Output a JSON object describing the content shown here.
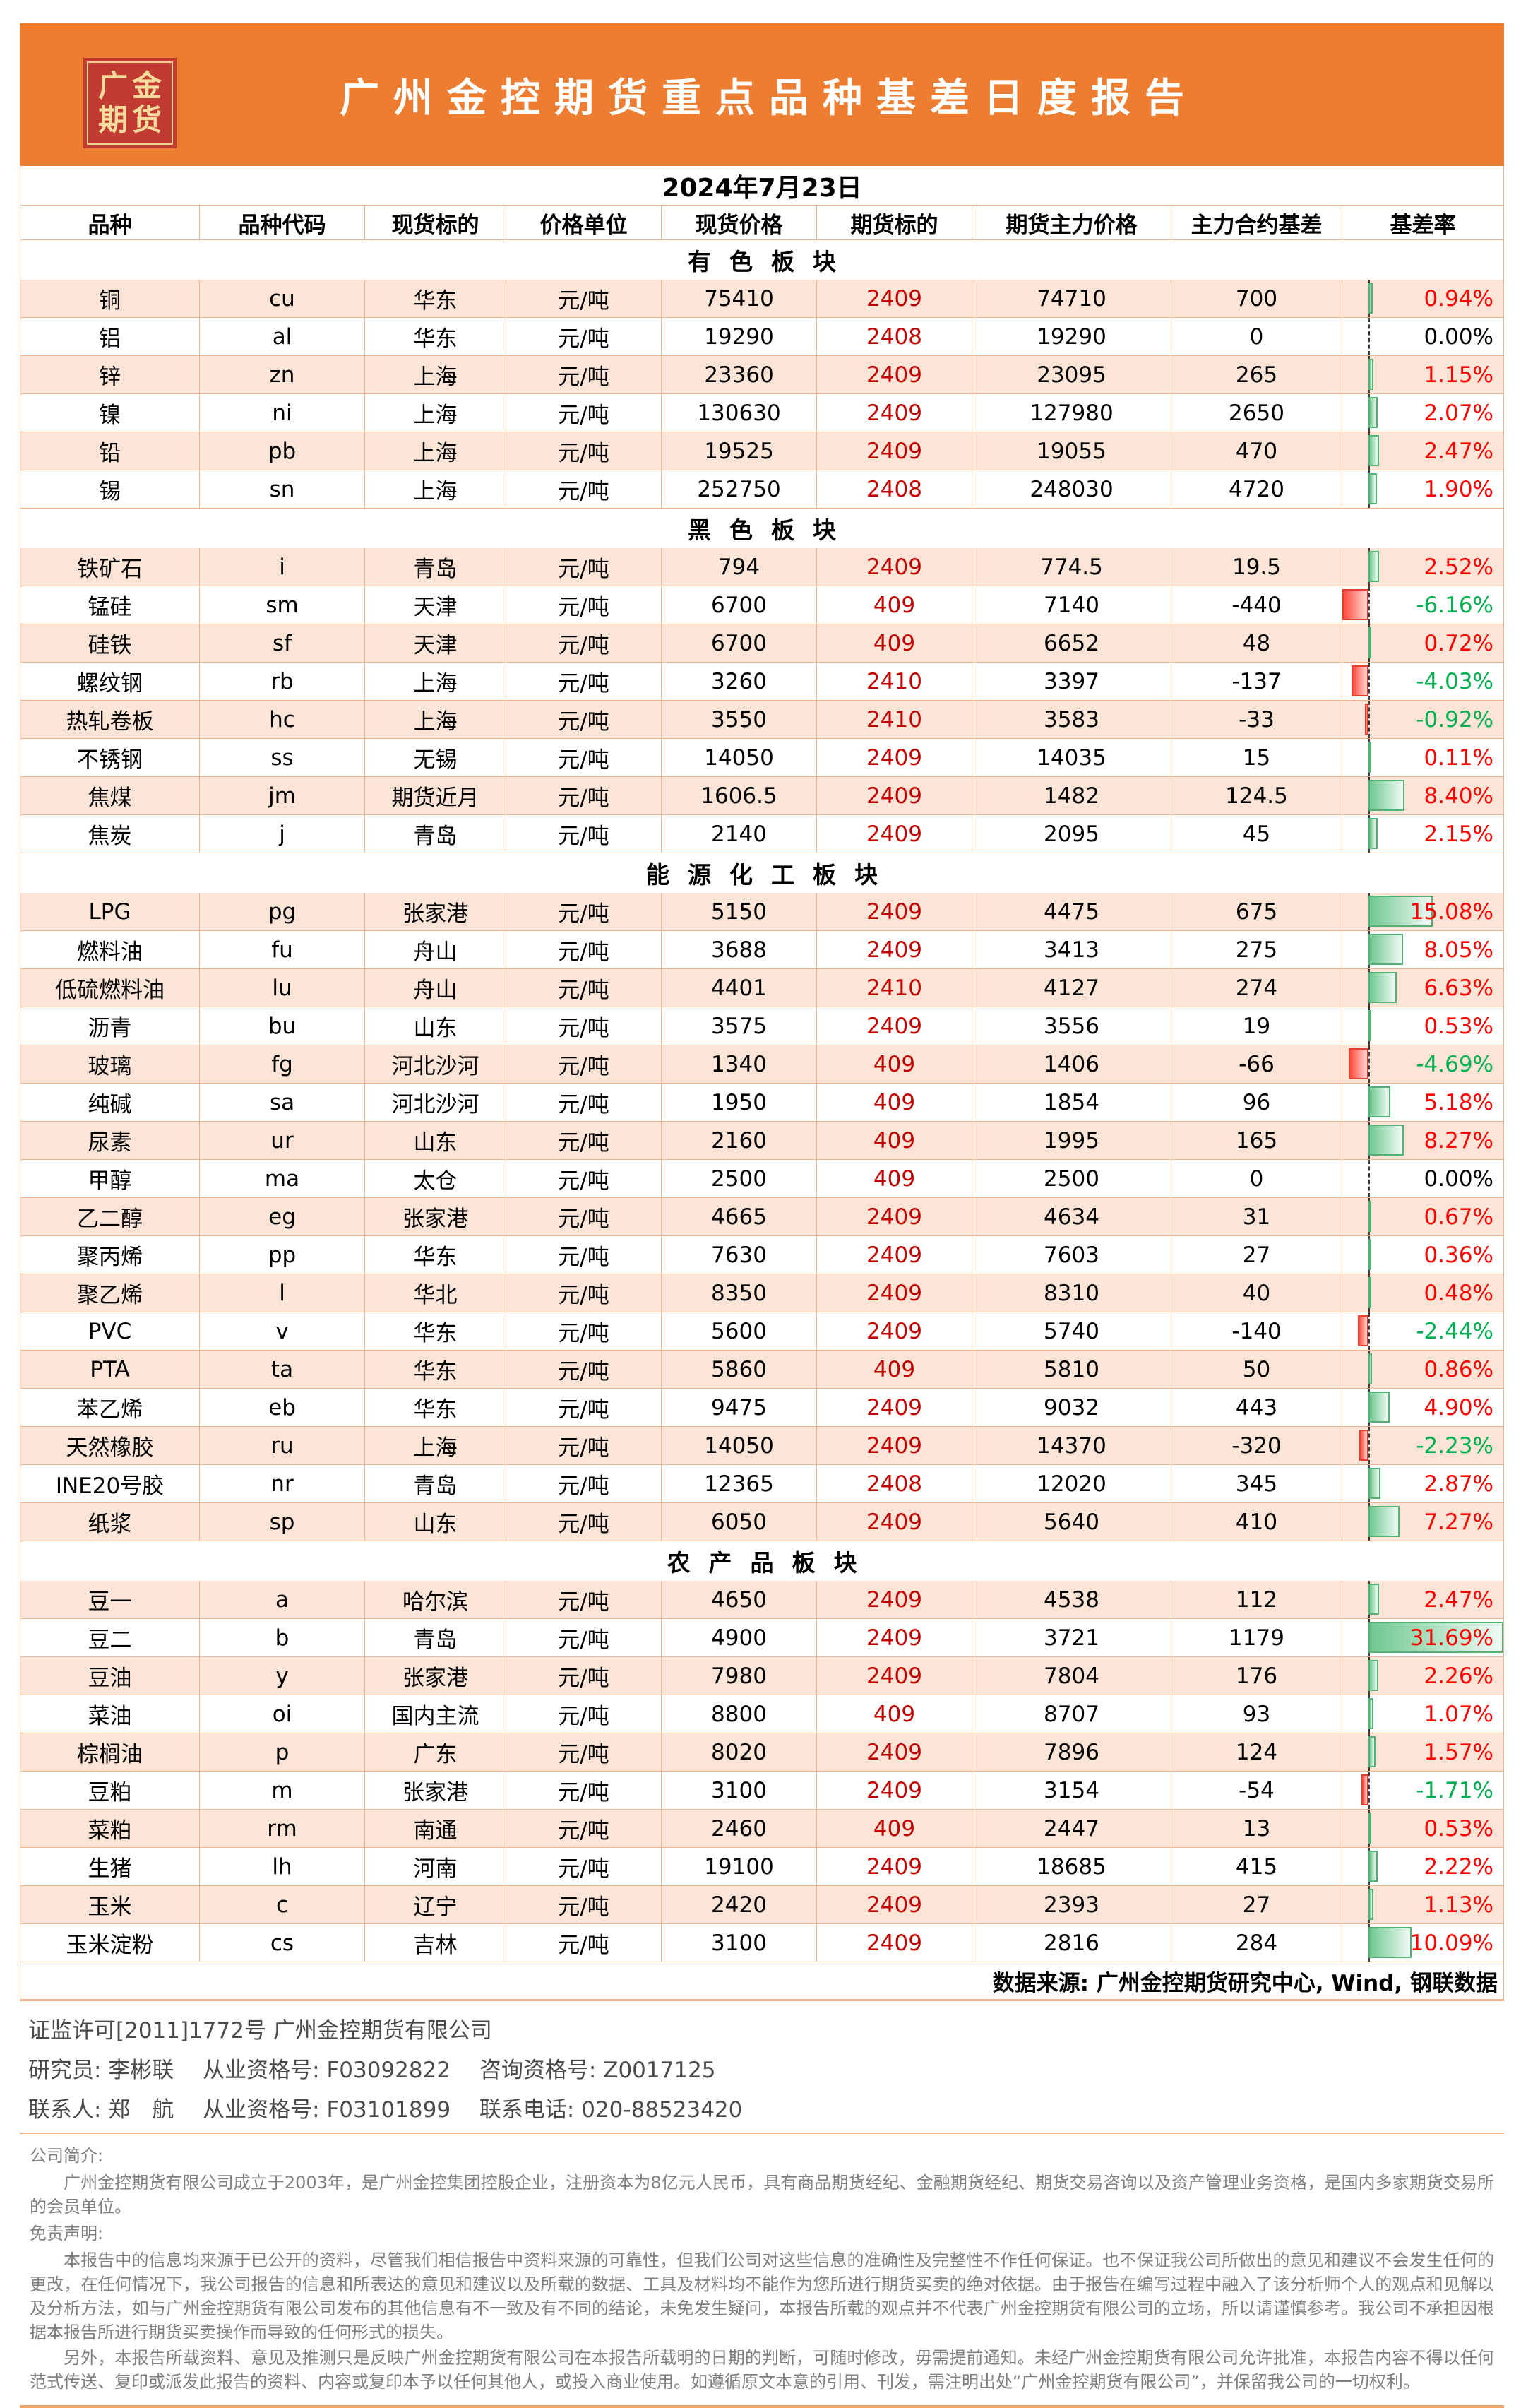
{
  "page": {
    "title": "广州金控期货重点品种基差日度报告",
    "date": "2024年7月23日",
    "logo_lines": [
      "广金",
      "期货"
    ],
    "colors": {
      "banner_orange": "#ED7D31",
      "logo_red": "#C23B33",
      "logo_gold": "#F6DC9C",
      "row_pink": "#FCE4D6",
      "grid_border": "#F2B488",
      "contract_dark_red": "#C00000",
      "rate_positive_red": "#FF0000",
      "rate_negative_green": "#00B050",
      "bar_green": "#52B173",
      "bar_red": "#E34034"
    }
  },
  "table": {
    "headers": [
      "品种",
      "品种代码",
      "现货标的",
      "价格单位",
      "现货价格",
      "期货标的",
      "期货主力价格",
      "主力合约基差",
      "基差率"
    ],
    "sections": [
      {
        "name": "有色板块",
        "rows": [
          {
            "variety": "铜",
            "code": "cu",
            "spot": "华东",
            "unit": "元/吨",
            "spot_price": "75410",
            "contract": "2409",
            "fut_price": "74710",
            "basis": "700",
            "rate": 0.94
          },
          {
            "variety": "铝",
            "code": "al",
            "spot": "华东",
            "unit": "元/吨",
            "spot_price": "19290",
            "contract": "2408",
            "fut_price": "19290",
            "basis": "0",
            "rate": 0.0
          },
          {
            "variety": "锌",
            "code": "zn",
            "spot": "上海",
            "unit": "元/吨",
            "spot_price": "23360",
            "contract": "2409",
            "fut_price": "23095",
            "basis": "265",
            "rate": 1.15
          },
          {
            "variety": "镍",
            "code": "ni",
            "spot": "上海",
            "unit": "元/吨",
            "spot_price": "130630",
            "contract": "2409",
            "fut_price": "127980",
            "basis": "2650",
            "rate": 2.07
          },
          {
            "variety": "铅",
            "code": "pb",
            "spot": "上海",
            "unit": "元/吨",
            "spot_price": "19525",
            "contract": "2409",
            "fut_price": "19055",
            "basis": "470",
            "rate": 2.47
          },
          {
            "variety": "锡",
            "code": "sn",
            "spot": "上海",
            "unit": "元/吨",
            "spot_price": "252750",
            "contract": "2408",
            "fut_price": "248030",
            "basis": "4720",
            "rate": 1.9
          }
        ]
      },
      {
        "name": "黑色板块",
        "rows": [
          {
            "variety": "铁矿石",
            "code": "i",
            "spot": "青岛",
            "unit": "元/吨",
            "spot_price": "794",
            "contract": "2409",
            "fut_price": "774.5",
            "basis": "19.5",
            "rate": 2.52
          },
          {
            "variety": "锰硅",
            "code": "sm",
            "spot": "天津",
            "unit": "元/吨",
            "spot_price": "6700",
            "contract": "409",
            "fut_price": "7140",
            "basis": "-440",
            "rate": -6.16
          },
          {
            "variety": "硅铁",
            "code": "sf",
            "spot": "天津",
            "unit": "元/吨",
            "spot_price": "6700",
            "contract": "409",
            "fut_price": "6652",
            "basis": "48",
            "rate": 0.72
          },
          {
            "variety": "螺纹钢",
            "code": "rb",
            "spot": "上海",
            "unit": "元/吨",
            "spot_price": "3260",
            "contract": "2410",
            "fut_price": "3397",
            "basis": "-137",
            "rate": -4.03
          },
          {
            "variety": "热轧卷板",
            "code": "hc",
            "spot": "上海",
            "unit": "元/吨",
            "spot_price": "3550",
            "contract": "2410",
            "fut_price": "3583",
            "basis": "-33",
            "rate": -0.92
          },
          {
            "variety": "不锈钢",
            "code": "ss",
            "spot": "无锡",
            "unit": "元/吨",
            "spot_price": "14050",
            "contract": "2409",
            "fut_price": "14035",
            "basis": "15",
            "rate": 0.11
          },
          {
            "variety": "焦煤",
            "code": "jm",
            "spot": "期货近月",
            "unit": "元/吨",
            "spot_price": "1606.5",
            "contract": "2409",
            "fut_price": "1482",
            "basis": "124.5",
            "rate": 8.4
          },
          {
            "variety": "焦炭",
            "code": "j",
            "spot": "青岛",
            "unit": "元/吨",
            "spot_price": "2140",
            "contract": "2409",
            "fut_price": "2095",
            "basis": "45",
            "rate": 2.15
          }
        ]
      },
      {
        "name": "能源化工板块",
        "rows": [
          {
            "variety": "LPG",
            "code": "pg",
            "spot": "张家港",
            "unit": "元/吨",
            "spot_price": "5150",
            "contract": "2409",
            "fut_price": "4475",
            "basis": "675",
            "rate": 15.08
          },
          {
            "variety": "燃料油",
            "code": "fu",
            "spot": "舟山",
            "unit": "元/吨",
            "spot_price": "3688",
            "contract": "2409",
            "fut_price": "3413",
            "basis": "275",
            "rate": 8.05
          },
          {
            "variety": "低硫燃料油",
            "code": "lu",
            "spot": "舟山",
            "unit": "元/吨",
            "spot_price": "4401",
            "contract": "2410",
            "fut_price": "4127",
            "basis": "274",
            "rate": 6.63
          },
          {
            "variety": "沥青",
            "code": "bu",
            "spot": "山东",
            "unit": "元/吨",
            "spot_price": "3575",
            "contract": "2409",
            "fut_price": "3556",
            "basis": "19",
            "rate": 0.53
          },
          {
            "variety": "玻璃",
            "code": "fg",
            "spot": "河北沙河",
            "unit": "元/吨",
            "spot_price": "1340",
            "contract": "409",
            "fut_price": "1406",
            "basis": "-66",
            "rate": -4.69
          },
          {
            "variety": "纯碱",
            "code": "sa",
            "spot": "河北沙河",
            "unit": "元/吨",
            "spot_price": "1950",
            "contract": "409",
            "fut_price": "1854",
            "basis": "96",
            "rate": 5.18
          },
          {
            "variety": "尿素",
            "code": "ur",
            "spot": "山东",
            "unit": "元/吨",
            "spot_price": "2160",
            "contract": "409",
            "fut_price": "1995",
            "basis": "165",
            "rate": 8.27
          },
          {
            "variety": "甲醇",
            "code": "ma",
            "spot": "太仓",
            "unit": "元/吨",
            "spot_price": "2500",
            "contract": "409",
            "fut_price": "2500",
            "basis": "0",
            "rate": 0.0
          },
          {
            "variety": "乙二醇",
            "code": "eg",
            "spot": "张家港",
            "unit": "元/吨",
            "spot_price": "4665",
            "contract": "2409",
            "fut_price": "4634",
            "basis": "31",
            "rate": 0.67
          },
          {
            "variety": "聚丙烯",
            "code": "pp",
            "spot": "华东",
            "unit": "元/吨",
            "spot_price": "7630",
            "contract": "2409",
            "fut_price": "7603",
            "basis": "27",
            "rate": 0.36
          },
          {
            "variety": "聚乙烯",
            "code": "l",
            "spot": "华北",
            "unit": "元/吨",
            "spot_price": "8350",
            "contract": "2409",
            "fut_price": "8310",
            "basis": "40",
            "rate": 0.48
          },
          {
            "variety": "PVC",
            "code": "v",
            "spot": "华东",
            "unit": "元/吨",
            "spot_price": "5600",
            "contract": "2409",
            "fut_price": "5740",
            "basis": "-140",
            "rate": -2.44
          },
          {
            "variety": "PTA",
            "code": "ta",
            "spot": "华东",
            "unit": "元/吨",
            "spot_price": "5860",
            "contract": "409",
            "fut_price": "5810",
            "basis": "50",
            "rate": 0.86
          },
          {
            "variety": "苯乙烯",
            "code": "eb",
            "spot": "华东",
            "unit": "元/吨",
            "spot_price": "9475",
            "contract": "2409",
            "fut_price": "9032",
            "basis": "443",
            "rate": 4.9
          },
          {
            "variety": "天然橡胶",
            "code": "ru",
            "spot": "上海",
            "unit": "元/吨",
            "spot_price": "14050",
            "contract": "2409",
            "fut_price": "14370",
            "basis": "-320",
            "rate": -2.23
          },
          {
            "variety": "INE20号胶",
            "code": "nr",
            "spot": "青岛",
            "unit": "元/吨",
            "spot_price": "12365",
            "contract": "2408",
            "fut_price": "12020",
            "basis": "345",
            "rate": 2.87
          },
          {
            "variety": "纸浆",
            "code": "sp",
            "spot": "山东",
            "unit": "元/吨",
            "spot_price": "6050",
            "contract": "2409",
            "fut_price": "5640",
            "basis": "410",
            "rate": 7.27
          }
        ]
      },
      {
        "name": "农产品板块",
        "rows": [
          {
            "variety": "豆一",
            "code": "a",
            "spot": "哈尔滨",
            "unit": "元/吨",
            "spot_price": "4650",
            "contract": "2409",
            "fut_price": "4538",
            "basis": "112",
            "rate": 2.47
          },
          {
            "variety": "豆二",
            "code": "b",
            "spot": "青岛",
            "unit": "元/吨",
            "spot_price": "4900",
            "contract": "2409",
            "fut_price": "3721",
            "basis": "1179",
            "rate": 31.69
          },
          {
            "variety": "豆油",
            "code": "y",
            "spot": "张家港",
            "unit": "元/吨",
            "spot_price": "7980",
            "contract": "2409",
            "fut_price": "7804",
            "basis": "176",
            "rate": 2.26
          },
          {
            "variety": "菜油",
            "code": "oi",
            "spot": "国内主流",
            "unit": "元/吨",
            "spot_price": "8800",
            "contract": "409",
            "fut_price": "8707",
            "basis": "93",
            "rate": 1.07
          },
          {
            "variety": "棕榈油",
            "code": "p",
            "spot": "广东",
            "unit": "元/吨",
            "spot_price": "8020",
            "contract": "2409",
            "fut_price": "7896",
            "basis": "124",
            "rate": 1.57
          },
          {
            "variety": "豆粕",
            "code": "m",
            "spot": "张家港",
            "unit": "元/吨",
            "spot_price": "3100",
            "contract": "2409",
            "fut_price": "3154",
            "basis": "-54",
            "rate": -1.71
          },
          {
            "variety": "菜粕",
            "code": "rm",
            "spot": "南通",
            "unit": "元/吨",
            "spot_price": "2460",
            "contract": "409",
            "fut_price": "2447",
            "basis": "13",
            "rate": 0.53
          },
          {
            "variety": "生猪",
            "code": "lh",
            "spot": "河南",
            "unit": "元/吨",
            "spot_price": "19100",
            "contract": "2409",
            "fut_price": "18685",
            "basis": "415",
            "rate": 2.22
          },
          {
            "variety": "玉米",
            "code": "c",
            "spot": "辽宁",
            "unit": "元/吨",
            "spot_price": "2420",
            "contract": "2409",
            "fut_price": "2393",
            "basis": "27",
            "rate": 1.13
          },
          {
            "variety": "玉米淀粉",
            "code": "cs",
            "spot": "吉林",
            "unit": "元/吨",
            "spot_price": "3100",
            "contract": "2409",
            "fut_price": "2816",
            "basis": "284",
            "rate": 10.09
          }
        ]
      }
    ]
  },
  "footer": {
    "datasource": "数据来源: 广州金控期货研究中心, Wind, 钢联数据",
    "license_line": "证监许可[2011]1772号 广州金控期货有限公司",
    "researcher_line": "研究员: 李彬联　 从业资格号: F03092822 　咨询资格号: Z0017125",
    "contact_line": "联系人: 郑　航 　从业资格号: F03101899 　联系电话: 020-88523420",
    "company_intro_heading": "公司简介:",
    "company_intro": "广州金控期货有限公司成立于2003年，是广州金控集团控股企业，注册资本为8亿元人民币，具有商品期货经纪、金融期货经纪、期货交易咨询以及资产管理业务资格，是国内多家期货交易所的会员单位。",
    "disclaimer_heading": "免责声明:",
    "disclaimer_p1": "本报告中的信息均来源于已公开的资料，尽管我们相信报告中资料来源的可靠性，但我们公司对这些信息的准确性及完整性不作任何保证。也不保证我公司所做出的意见和建议不会发生任何的更改，在任何情况下，我公司报告的信息和所表达的意见和建议以及所载的数据、工具及材料均不能作为您所进行期货买卖的绝对依据。由于报告在编写过程中融入了该分析师个人的观点和见解以及分析方法，如与广州金控期货有限公司发布的其他信息有不一致及有不同的结论，未免发生疑问，本报告所载的观点并不代表广州金控期货有限公司的立场，所以请谨慎参考。我公司不承担因根据本报告所进行期货买卖操作而导致的任何形式的损失。",
    "disclaimer_p2": "另外，本报告所载资料、意见及推测只是反映广州金控期货有限公司在本报告所载明的日期的判断，可随时修改，毋需提前通知。未经广州金控期货有限公司允许批准，本报告内容不得以任何范式传送、复印或派发此报告的资料、内容或复印本予以任何其他人，或投入商业使用。如遵循原文本意的引用、刊发，需注明出处“广州金控期货有限公司”，并保留我公司的一切权利。"
  }
}
